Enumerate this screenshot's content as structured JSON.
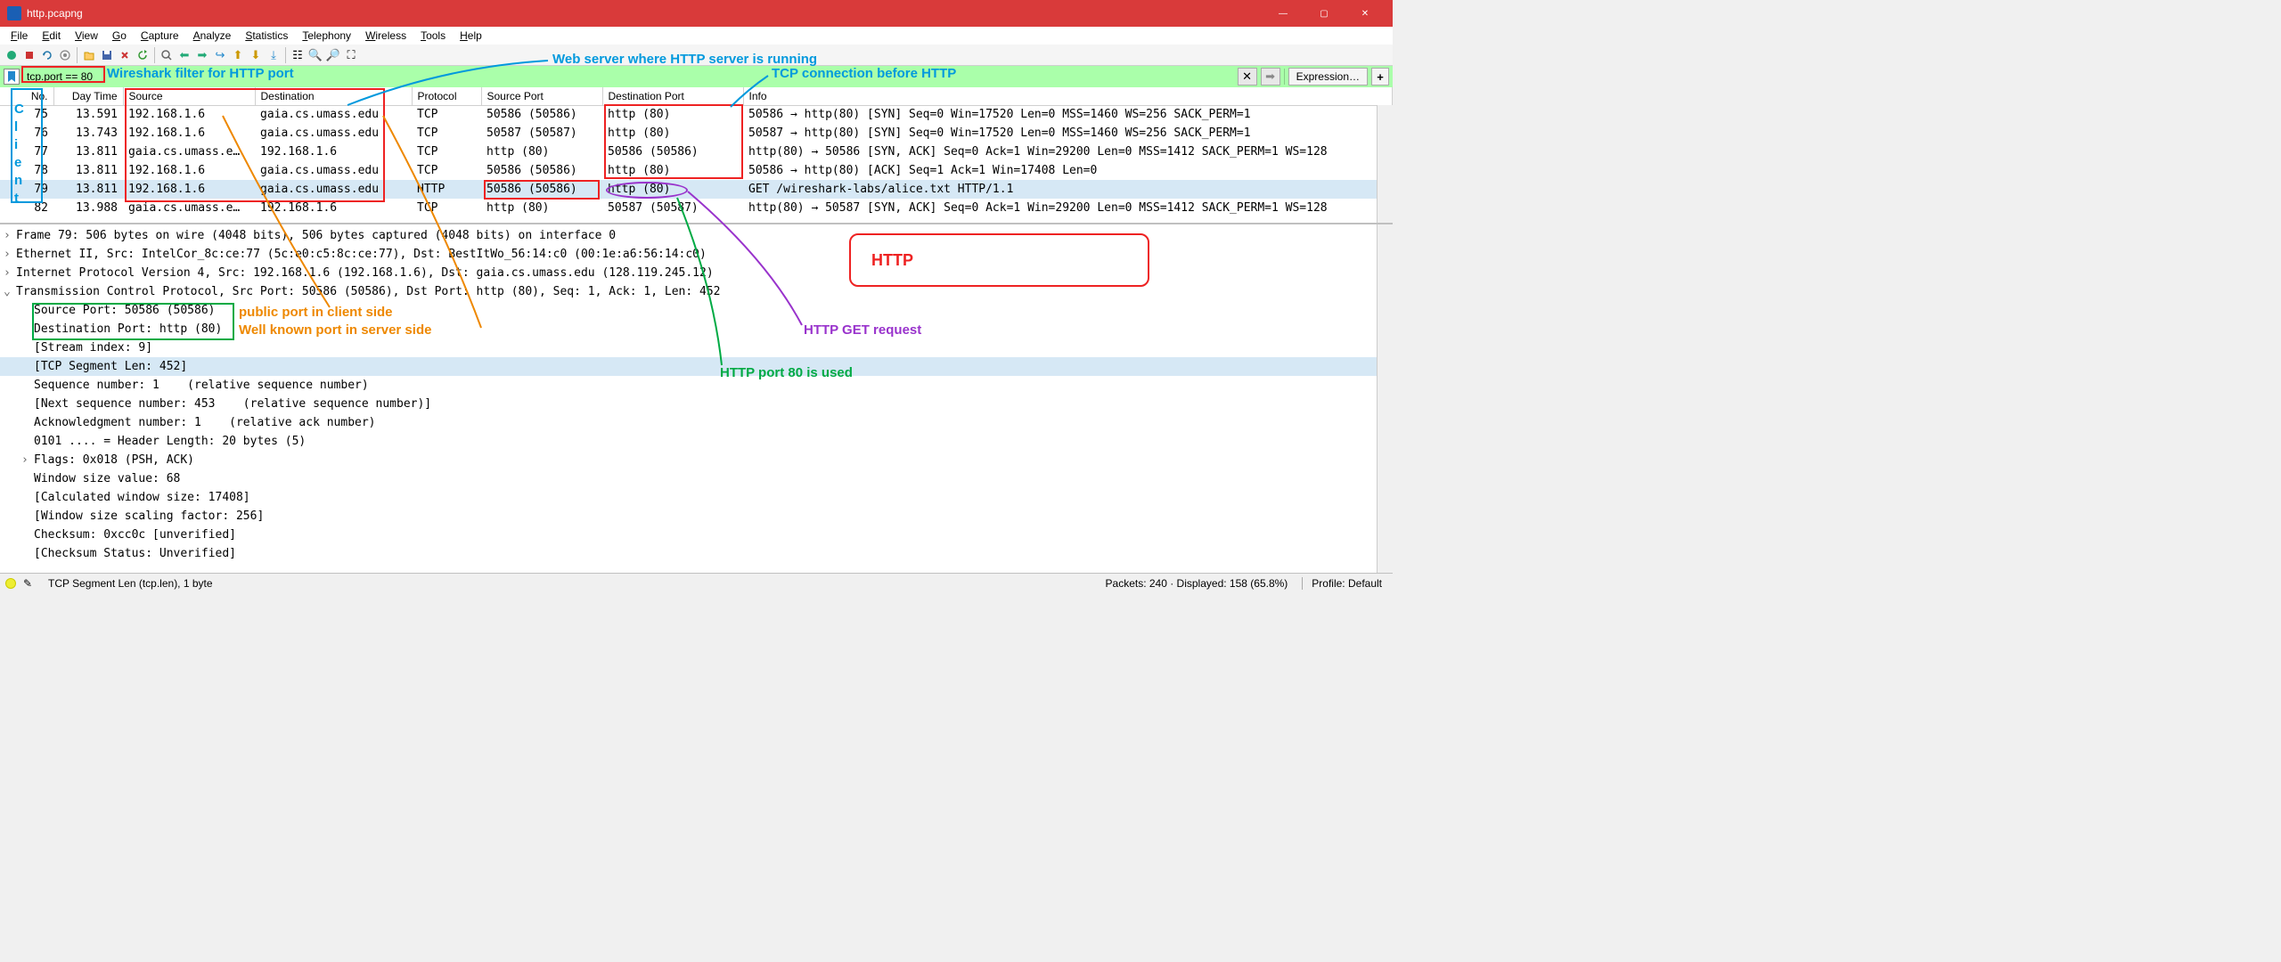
{
  "window": {
    "title": "http.pcapng"
  },
  "menus": [
    "File",
    "Edit",
    "View",
    "Go",
    "Capture",
    "Analyze",
    "Statistics",
    "Telephony",
    "Wireless",
    "Tools",
    "Help"
  ],
  "filter": {
    "value": "tcp.port == 80",
    "expression_label": "Expression…",
    "clear_icon": "✕",
    "plus": "+"
  },
  "columns": {
    "no": "No.",
    "daytime": "Day Time",
    "source": "Source",
    "destination": "Destination",
    "protocol": "Protocol",
    "sport": "Source Port",
    "dport": "Destination Port",
    "info": "Info"
  },
  "packets": [
    {
      "no": "75",
      "time": "13.591",
      "src": "192.168.1.6",
      "dst": "gaia.cs.umass.edu",
      "proto": "TCP",
      "sport": "50586 (50586)",
      "dport": "http (80)",
      "info": "50586 → http(80) [SYN] Seq=0 Win=17520 Len=0 MSS=1460 WS=256 SACK_PERM=1"
    },
    {
      "no": "76",
      "time": "13.743",
      "src": "192.168.1.6",
      "dst": "gaia.cs.umass.edu",
      "proto": "TCP",
      "sport": "50587 (50587)",
      "dport": "http (80)",
      "info": "50587 → http(80) [SYN] Seq=0 Win=17520 Len=0 MSS=1460 WS=256 SACK_PERM=1"
    },
    {
      "no": "77",
      "time": "13.811",
      "src": "gaia.cs.umass.e…",
      "dst": "192.168.1.6",
      "proto": "TCP",
      "sport": "http (80)",
      "dport": "50586 (50586)",
      "info": "http(80) → 50586 [SYN, ACK] Seq=0 Ack=1 Win=29200 Len=0 MSS=1412 SACK_PERM=1 WS=128"
    },
    {
      "no": "78",
      "time": "13.811",
      "src": "192.168.1.6",
      "dst": "gaia.cs.umass.edu",
      "proto": "TCP",
      "sport": "50586 (50586)",
      "dport": "http (80)",
      "info": "50586 → http(80) [ACK] Seq=1 Ack=1 Win=17408 Len=0"
    },
    {
      "no": "79",
      "time": "13.811",
      "src": "192.168.1.6",
      "dst": "gaia.cs.umass.edu",
      "proto": "HTTP",
      "sport": "50586 (50586)",
      "dport": "http (80)",
      "info": "GET /wireshark-labs/alice.txt HTTP/1.1"
    },
    {
      "no": "82",
      "time": "13.988",
      "src": "gaia.cs.umass.e…",
      "dst": "192.168.1.6",
      "proto": "TCP",
      "sport": "http (80)",
      "dport": "50587 (50587)",
      "info": "http(80) → 50587 [SYN, ACK] Seq=0 Ack=1 Win=29200 Len=0 MSS=1412 SACK_PERM=1 WS=128"
    }
  ],
  "details": [
    {
      "lvl": 0,
      "caret": ">",
      "text": "Frame 79: 506 bytes on wire (4048 bits), 506 bytes captured (4048 bits) on interface 0"
    },
    {
      "lvl": 0,
      "caret": ">",
      "text": "Ethernet II, Src: IntelCor_8c:ce:77 (5c:e0:c5:8c:ce:77), Dst: BestItWo_56:14:c0 (00:1e:a6:56:14:c0)"
    },
    {
      "lvl": 0,
      "caret": ">",
      "text": "Internet Protocol Version 4, Src: 192.168.1.6 (192.168.1.6), Dst: gaia.cs.umass.edu (128.119.245.12)"
    },
    {
      "lvl": 0,
      "caret": "v",
      "text": "Transmission Control Protocol, Src Port: 50586 (50586), Dst Port: http (80), Seq: 1, Ack: 1, Len: 452"
    },
    {
      "lvl": 1,
      "caret": "",
      "text": "Source Port: 50586 (50586)"
    },
    {
      "lvl": 1,
      "caret": "",
      "text": "Destination Port: http (80)"
    },
    {
      "lvl": 1,
      "caret": "",
      "text": "[Stream index: 9]"
    },
    {
      "lvl": 1,
      "caret": "",
      "text": "[TCP Segment Len: 452]",
      "hl": true
    },
    {
      "lvl": 1,
      "caret": "",
      "text": "Sequence number: 1    (relative sequence number)"
    },
    {
      "lvl": 1,
      "caret": "",
      "text": "[Next sequence number: 453    (relative sequence number)]"
    },
    {
      "lvl": 1,
      "caret": "",
      "text": "Acknowledgment number: 1    (relative ack number)"
    },
    {
      "lvl": 1,
      "caret": "",
      "text": "0101 .... = Header Length: 20 bytes (5)"
    },
    {
      "lvl": 1,
      "caret": ">",
      "text": "Flags: 0x018 (PSH, ACK)"
    },
    {
      "lvl": 1,
      "caret": "",
      "text": "Window size value: 68"
    },
    {
      "lvl": 1,
      "caret": "",
      "text": "[Calculated window size: 17408]"
    },
    {
      "lvl": 1,
      "caret": "",
      "text": "[Window size scaling factor: 256]"
    },
    {
      "lvl": 1,
      "caret": "",
      "text": "Checksum: 0xcc0c [unverified]"
    },
    {
      "lvl": 1,
      "caret": "",
      "text": "[Checksum Status: Unverified]"
    }
  ],
  "statusbar": {
    "field": "TCP Segment Len (tcp.len), 1 byte",
    "packets": "Packets: 240 · Displayed: 158 (65.8%)",
    "profile": "Profile: Default"
  },
  "annotations": {
    "webserver": "Web server where HTTP server is running",
    "filter": "Wireshark filter for HTTP port",
    "tcp_before": "TCP connection before HTTP",
    "client": "Client",
    "http_box": "HTTP",
    "http_get": "HTTP GET request",
    "port80": "HTTP port 80 is used",
    "public_port": "public port in client side",
    "well_known": "Well known port in server side",
    "colors": {
      "blue": "#0099dd",
      "red": "#ee2222",
      "green": "#00aa44",
      "orange": "#ee8800",
      "purple": "#9933cc"
    }
  }
}
